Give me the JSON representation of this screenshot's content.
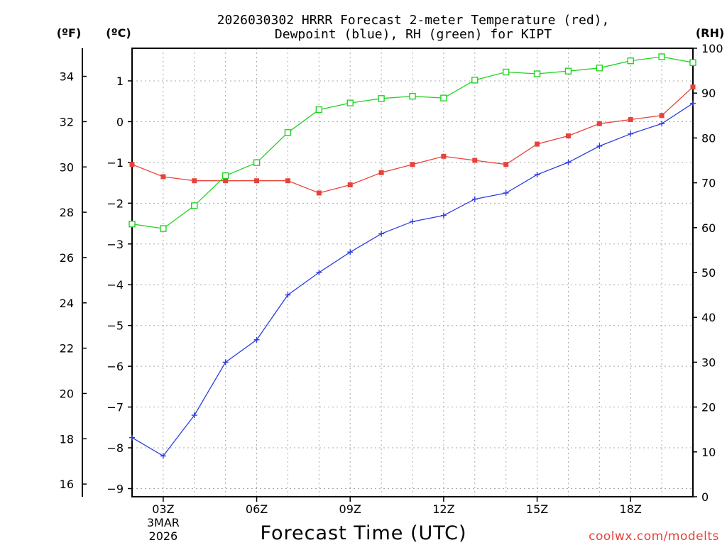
{
  "chart_data": {
    "type": "line",
    "title_line1": "2026030302 HRRR Forecast 2-meter Temperature (red),",
    "title_line2": "Dewpoint (blue), RH (green) for KIPT",
    "units": {
      "fahrenheit": "(ºF)",
      "celsius": "(ºC)",
      "rh": "(RH)"
    },
    "xlabel": "Forecast Time (UTC)",
    "credit": "coolwx.com/modelts",
    "x_hours": [
      2,
      3,
      4,
      5,
      6,
      7,
      8,
      9,
      10,
      11,
      12,
      13,
      14,
      15,
      16,
      17,
      18,
      19,
      20
    ],
    "xlim": [
      2,
      20
    ],
    "x_ticks": [
      {
        "hour": 3,
        "label": "03Z",
        "sub1": "3MAR",
        "sub2": "2026"
      },
      {
        "hour": 6,
        "label": "06Z"
      },
      {
        "hour": 9,
        "label": "09Z"
      },
      {
        "hour": 12,
        "label": "12Z"
      },
      {
        "hour": 15,
        "label": "15Z"
      },
      {
        "hour": 18,
        "label": "18Z"
      }
    ],
    "ylim_c": [
      -9.2,
      1.8
    ],
    "y_ticks_c": [
      1,
      0,
      -1,
      -2,
      -3,
      -4,
      -5,
      -6,
      -7,
      -8,
      -9
    ],
    "y_ticks_c_labels": [
      "1",
      "0",
      "−1",
      "−2",
      "−3",
      "−4",
      "−5",
      "−6",
      "−7",
      "−8",
      "−9"
    ],
    "y_ticks_f": [
      34,
      32,
      30,
      28,
      26,
      24,
      22,
      20,
      18,
      16
    ],
    "y_ticks_f_labels": [
      "34",
      "32",
      "30",
      "28",
      "26",
      "24",
      "22",
      "20",
      "18",
      "16"
    ],
    "ylim_rh": [
      0,
      100
    ],
    "y_ticks_rh": [
      100,
      90,
      80,
      70,
      60,
      50,
      40,
      30,
      20,
      10,
      0
    ],
    "y_ticks_rh_labels": [
      "100",
      "90",
      "80",
      "70",
      "60",
      "50",
      "40",
      "30",
      "20",
      "10",
      "0"
    ],
    "series": [
      {
        "name": "Temperature",
        "color": "#e8413a",
        "marker": "filled-square",
        "axis": "celsius",
        "values": [
          -1.05,
          -1.35,
          -1.45,
          -1.45,
          -1.45,
          -1.45,
          -1.75,
          -1.55,
          -1.25,
          -1.05,
          -0.85,
          -0.95,
          -1.05,
          -0.55,
          -0.35,
          -0.05,
          0.05,
          0.15,
          0.85
        ]
      },
      {
        "name": "Dewpoint",
        "color": "#2e3fe0",
        "marker": "plus",
        "axis": "celsius",
        "values": [
          -7.75,
          -8.2,
          -7.2,
          -5.9,
          -5.35,
          -4.25,
          -3.7,
          -3.2,
          -2.75,
          -2.45,
          -2.3,
          -1.9,
          -1.75,
          -1.3,
          -1.0,
          -0.6,
          -0.3,
          -0.05,
          0.45
        ]
      },
      {
        "name": "RH",
        "color": "#22d422",
        "marker": "open-square",
        "axis": "rh",
        "values": [
          60.8,
          59.8,
          64.9,
          71.6,
          74.5,
          81.2,
          86.3,
          87.8,
          88.8,
          89.3,
          88.9,
          92.9,
          94.7,
          94.3,
          94.9,
          95.6,
          97.2,
          98.1,
          96.8
        ]
      }
    ]
  }
}
